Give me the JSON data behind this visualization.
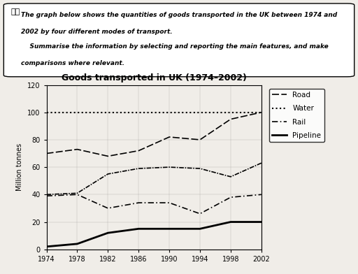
{
  "title": "Goods transported in UK (1974–2002)",
  "ylabel": "Million tonnes",
  "years": [
    1974,
    1978,
    1982,
    1986,
    1990,
    1994,
    1998,
    2002
  ],
  "road": [
    70,
    73,
    68,
    72,
    82,
    80,
    95,
    100
  ],
  "water": [
    40,
    41,
    55,
    59,
    60,
    59,
    53,
    63
  ],
  "rail": [
    39,
    40,
    30,
    34,
    34,
    26,
    38,
    40
  ],
  "pipeline": [
    2,
    4,
    12,
    15,
    15,
    15,
    20,
    20
  ],
  "water_flat": [
    100,
    100,
    100,
    100,
    100,
    100,
    100,
    100
  ],
  "ylim": [
    0,
    120
  ],
  "yticks": [
    0,
    20,
    40,
    60,
    80,
    100,
    120
  ],
  "xticks": [
    1974,
    1978,
    1982,
    1986,
    1990,
    1994,
    1998,
    2002
  ],
  "header_text1": "The graph below shows the quantities of goods transported in the UK between 1974 and",
  "header_text2": "2002 by four different modes of transport.",
  "header_text3": "    Summarise the information by selecting and reporting the main features, and make",
  "header_text4": "comparisons where relevant.",
  "label_top": "题目",
  "background_color": "#f0ede8",
  "box_background": "#ffffff"
}
